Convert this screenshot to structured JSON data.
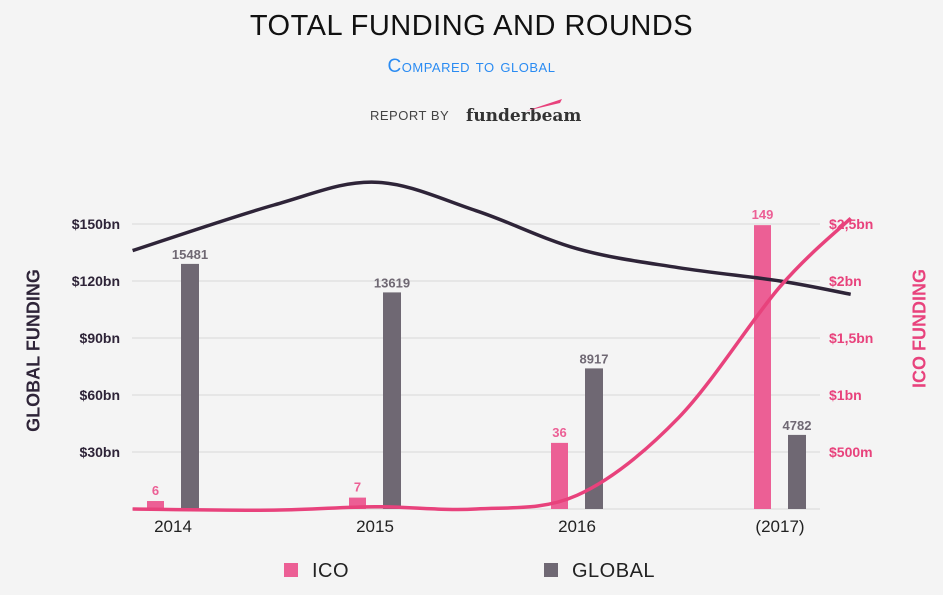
{
  "header": {
    "title": "TOTAL FUNDING AND ROUNDS",
    "subtitle": "Compared to global",
    "report_by": "REPORT BY",
    "brand": "funderbeam"
  },
  "colors": {
    "ico": "#e8427c",
    "ico_bar": "#ec5f95",
    "global": "#2e2438",
    "global_bar": "#6f6873",
    "grid": "#d8d8d8",
    "subtitle": "#2a8bf2"
  },
  "chart_data": {
    "type": "bar",
    "title": "TOTAL FUNDING AND ROUNDS",
    "subtitle": "Compared to global",
    "categories": [
      "2014",
      "2015",
      "2016",
      "(2017)"
    ],
    "ylabel_left": "GLOBAL FUNDING",
    "ylabel_right": "ICO FUNDING",
    "left_axis": {
      "ylim": [
        0,
        150
      ],
      "unit": "bn",
      "ticks": [
        30,
        60,
        90,
        120,
        150
      ],
      "tick_labels": [
        "$30bn",
        "$60bn",
        "$90bn",
        "$120bn",
        "$150bn"
      ]
    },
    "right_axis": {
      "ylim": [
        0,
        2.5
      ],
      "unit": "bn",
      "ticks": [
        0.5,
        1,
        1.5,
        2,
        2.5
      ],
      "tick_labels": [
        "$500m",
        "$1bn",
        "$1,5bn",
        "$2bn",
        "$2,5bn"
      ]
    },
    "grid": true,
    "legend": {
      "position": "bottom",
      "entries": [
        "ICO",
        "GLOBAL"
      ]
    },
    "series": [
      {
        "name": "ICO",
        "axis": "right",
        "kind": "bar",
        "values": [
          0.07,
          0.1,
          0.58,
          2.49
        ],
        "labels": [
          "6",
          "7",
          "36",
          "149"
        ]
      },
      {
        "name": "GLOBAL",
        "axis": "left",
        "kind": "bar",
        "values": [
          129,
          114,
          74,
          39
        ],
        "labels": [
          "15481",
          "13619",
          "8917",
          "4782"
        ]
      },
      {
        "name": "GLOBAL trend",
        "axis": "left",
        "kind": "line",
        "x": [
          -0.2,
          0.5,
          1.0,
          1.5,
          2.0,
          2.5,
          3.0,
          3.35
        ],
        "values": [
          136,
          160,
          172,
          157,
          137,
          127,
          120,
          113
        ]
      },
      {
        "name": "ICO trend",
        "axis": "right",
        "kind": "line",
        "x": [
          -0.2,
          0.5,
          1.0,
          1.5,
          2.0,
          2.5,
          3.0,
          3.35
        ],
        "values": [
          0.0,
          -0.01,
          0.02,
          0.0,
          0.12,
          0.8,
          1.95,
          2.55
        ]
      }
    ]
  },
  "legend": {
    "ico": "ICO",
    "global": "GLOBAL"
  }
}
